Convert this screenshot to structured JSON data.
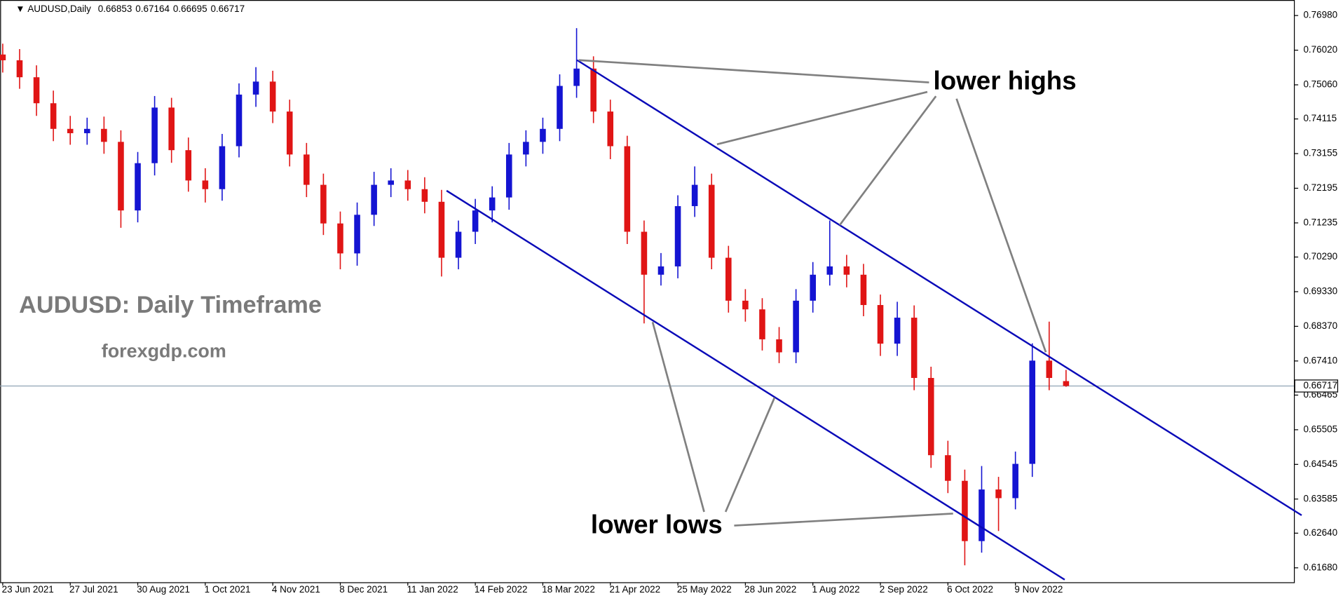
{
  "chart_data": {
    "type": "candlestick",
    "symbol": "AUDUSD,Daily",
    "up_color": "#1414d2",
    "down_color": "#e01515",
    "price_line_color": "#8fa3b4",
    "annotations": {
      "title": "AUDUSD: Daily Timeframe",
      "source": "forexgdp.com",
      "highs": "lower highs",
      "lows": "lower lows"
    },
    "categories": [
      "23 Jun 2021",
      null,
      null,
      null,
      "27 Jul 2021",
      null,
      null,
      null,
      "30 Aug 2021",
      null,
      null,
      null,
      "1 Oct 2021",
      null,
      null,
      null,
      "4 Nov 2021",
      null,
      null,
      null,
      "8 Dec 2021",
      null,
      null,
      null,
      "11 Jan 2022",
      null,
      null,
      null,
      "14 Feb 2022",
      null,
      null,
      null,
      "18 Mar 2022",
      null,
      null,
      null,
      "21 Apr 2022",
      null,
      null,
      null,
      "25 May 2022",
      null,
      null,
      null,
      "28 Jun 2022",
      null,
      null,
      null,
      "1 Aug 2022",
      null,
      null,
      null,
      "2 Sep 2022",
      null,
      null,
      null,
      "6 Oct 2022",
      null,
      null,
      null,
      "9 Nov 2022",
      null,
      null,
      null
    ],
    "open": [
      0.759,
      0.7574,
      0.7527,
      0.7455,
      0.7384,
      0.7372,
      0.7384,
      0.7348,
      0.7158,
      0.7289,
      0.7443,
      0.7325,
      0.7241,
      0.7217,
      0.7336,
      0.7479,
      0.7515,
      0.7432,
      0.7313,
      0.7229,
      0.7122,
      0.7039,
      0.7146,
      0.7229,
      0.7241,
      0.7217,
      0.7182,
      0.7027,
      0.7099,
      0.7158,
      0.7194,
      0.7313,
      0.7348,
      0.7384,
      0.7503,
      0.7551,
      0.7432,
      0.7336,
      0.7099,
      0.698,
      0.7003,
      0.717,
      0.7229,
      0.7027,
      0.6908,
      0.6884,
      0.6801,
      0.6765,
      0.6908,
      0.698,
      0.7003,
      0.698,
      0.6896,
      0.6789,
      0.6861,
      0.6694,
      0.648,
      0.6409,
      0.6242,
      0.6385,
      0.6361,
      0.6456,
      0.6742,
      0.66853
    ],
    "high": [
      0.762,
      0.7605,
      0.756,
      0.749,
      0.742,
      0.7415,
      0.7418,
      0.738,
      0.732,
      0.7475,
      0.747,
      0.736,
      0.7275,
      0.737,
      0.751,
      0.7555,
      0.7545,
      0.7465,
      0.7345,
      0.726,
      0.7155,
      0.718,
      0.7265,
      0.7275,
      0.727,
      0.725,
      0.7215,
      0.713,
      0.719,
      0.7225,
      0.7345,
      0.738,
      0.7415,
      0.7535,
      0.7663,
      0.7585,
      0.7465,
      0.7365,
      0.713,
      0.704,
      0.72,
      0.728,
      0.726,
      0.706,
      0.694,
      0.6915,
      0.6835,
      0.694,
      0.7015,
      0.713,
      0.7035,
      0.701,
      0.6925,
      0.6905,
      0.6895,
      0.6725,
      0.652,
      0.644,
      0.645,
      0.642,
      0.649,
      0.679,
      0.685,
      0.67164
    ],
    "low": [
      0.754,
      0.7495,
      0.742,
      0.735,
      0.734,
      0.734,
      0.7315,
      0.711,
      0.7125,
      0.7255,
      0.729,
      0.721,
      0.718,
      0.7185,
      0.7305,
      0.7445,
      0.74,
      0.728,
      0.7195,
      0.709,
      0.6995,
      0.7005,
      0.7115,
      0.7195,
      0.7185,
      0.715,
      0.6975,
      0.6995,
      0.7065,
      0.7125,
      0.716,
      0.728,
      0.7315,
      0.735,
      0.747,
      0.74,
      0.73,
      0.7065,
      0.6845,
      0.695,
      0.697,
      0.714,
      0.6995,
      0.6875,
      0.685,
      0.677,
      0.6735,
      0.6735,
      0.6875,
      0.695,
      0.6945,
      0.6865,
      0.6755,
      0.6755,
      0.666,
      0.6445,
      0.6375,
      0.6175,
      0.621,
      0.627,
      0.633,
      0.642,
      0.666,
      0.66695
    ],
    "close": [
      0.7574,
      0.7527,
      0.7455,
      0.7384,
      0.7372,
      0.7384,
      0.7348,
      0.7158,
      0.7289,
      0.7443,
      0.7325,
      0.7241,
      0.7217,
      0.7336,
      0.7479,
      0.7515,
      0.7432,
      0.7313,
      0.7229,
      0.7122,
      0.7039,
      0.7146,
      0.7229,
      0.7241,
      0.7217,
      0.7182,
      0.7027,
      0.7099,
      0.7158,
      0.7194,
      0.7313,
      0.7348,
      0.7384,
      0.7503,
      0.7551,
      0.7432,
      0.7336,
      0.7099,
      0.698,
      0.7003,
      0.717,
      0.7229,
      0.7027,
      0.6908,
      0.6884,
      0.6801,
      0.6765,
      0.6908,
      0.698,
      0.7003,
      0.698,
      0.6896,
      0.6789,
      0.6861,
      0.6694,
      0.648,
      0.6409,
      0.6242,
      0.6385,
      0.6361,
      0.6456,
      0.6742,
      0.6694,
      0.66717
    ],
    "ylim": [
      0.6128,
      0.7741
    ],
    "yticks": [
      {
        "value": 0.7698,
        "label": "0.76980"
      },
      {
        "value": 0.7602,
        "label": "0.76020"
      },
      {
        "value": 0.7506,
        "label": "0.75060"
      },
      0.74115,
      0.73155,
      0.72195,
      0.71235,
      {
        "value": 0.7029,
        "label": "0.70290"
      },
      {
        "value": 0.6933,
        "label": "0.69330"
      },
      {
        "value": 0.6837,
        "label": "0.68370"
      },
      {
        "value": 0.6741,
        "label": "0.67410"
      },
      0.66465,
      0.65505,
      0.64545,
      0.63585,
      {
        "value": 0.6264,
        "label": "0.62640"
      },
      {
        "value": 0.6168,
        "label": "0.61680"
      }
    ]
  }
}
